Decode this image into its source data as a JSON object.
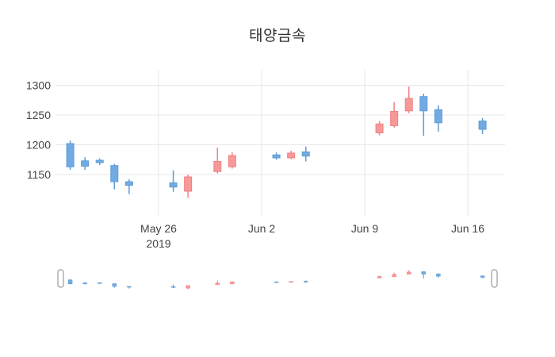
{
  "title": "태양금속",
  "chart_data": {
    "type": "candlestick",
    "title": "태양금속",
    "xlabel": "",
    "ylabel": "",
    "ylim": [
      1096,
      1310
    ],
    "grid": true,
    "rangeslider": true,
    "yticks": [
      1300,
      1250,
      1200,
      1150
    ],
    "xticks": [
      {
        "label": "May 26",
        "sublabel": "2019",
        "day": 6
      },
      {
        "label": "Jun 2",
        "sublabel": "",
        "day": 13
      },
      {
        "label": "Jun 9",
        "sublabel": "",
        "day": 20
      },
      {
        "label": "Jun 16",
        "sublabel": "",
        "day": 27
      }
    ],
    "colors": {
      "increasing_fill": "#f89898",
      "increasing_line": "#ee8282",
      "decreasing_fill": "#72abe3",
      "decreasing_line": "#5d9bd3",
      "grid": "#e7e7e7",
      "tick_text": "#444444",
      "handle_border": "#9a9a9a",
      "background": "#ffffff"
    },
    "ohlc": [
      {
        "date": "2019-05-20",
        "day": 0,
        "open": 1202,
        "high": 1207,
        "low": 1158,
        "close": 1163
      },
      {
        "date": "2019-05-21",
        "day": 1,
        "open": 1173,
        "high": 1179,
        "low": 1158,
        "close": 1164
      },
      {
        "date": "2019-05-22",
        "day": 2,
        "open": 1174,
        "high": 1177,
        "low": 1166,
        "close": 1170
      },
      {
        "date": "2019-05-23",
        "day": 3,
        "open": 1165,
        "high": 1168,
        "low": 1125,
        "close": 1138
      },
      {
        "date": "2019-05-24",
        "day": 4,
        "open": 1138,
        "high": 1142,
        "low": 1117,
        "close": 1132
      },
      {
        "date": "2019-05-27",
        "day": 7,
        "open": 1136,
        "high": 1157,
        "low": 1121,
        "close": 1129
      },
      {
        "date": "2019-05-28",
        "day": 8,
        "open": 1122,
        "high": 1150,
        "low": 1111,
        "close": 1146
      },
      {
        "date": "2019-05-30",
        "day": 10,
        "open": 1155,
        "high": 1195,
        "low": 1152,
        "close": 1172
      },
      {
        "date": "2019-05-31",
        "day": 11,
        "open": 1163,
        "high": 1188,
        "low": 1160,
        "close": 1182
      },
      {
        "date": "2019-06-03",
        "day": 14,
        "open": 1183,
        "high": 1187,
        "low": 1175,
        "close": 1178
      },
      {
        "date": "2019-06-04",
        "day": 15,
        "open": 1178,
        "high": 1190,
        "low": 1176,
        "close": 1186
      },
      {
        "date": "2019-06-05",
        "day": 16,
        "open": 1188,
        "high": 1197,
        "low": 1172,
        "close": 1181
      },
      {
        "date": "2019-06-10",
        "day": 21,
        "open": 1220,
        "high": 1240,
        "low": 1216,
        "close": 1235
      },
      {
        "date": "2019-06-11",
        "day": 22,
        "open": 1232,
        "high": 1272,
        "low": 1229,
        "close": 1256
      },
      {
        "date": "2019-06-12",
        "day": 23,
        "open": 1257,
        "high": 1298,
        "low": 1253,
        "close": 1278
      },
      {
        "date": "2019-06-13",
        "day": 24,
        "open": 1281,
        "high": 1286,
        "low": 1215,
        "close": 1257
      },
      {
        "date": "2019-06-14",
        "day": 25,
        "open": 1259,
        "high": 1266,
        "low": 1222,
        "close": 1237
      },
      {
        "date": "2019-06-17",
        "day": 28,
        "open": 1240,
        "high": 1245,
        "low": 1218,
        "close": 1226
      }
    ]
  }
}
